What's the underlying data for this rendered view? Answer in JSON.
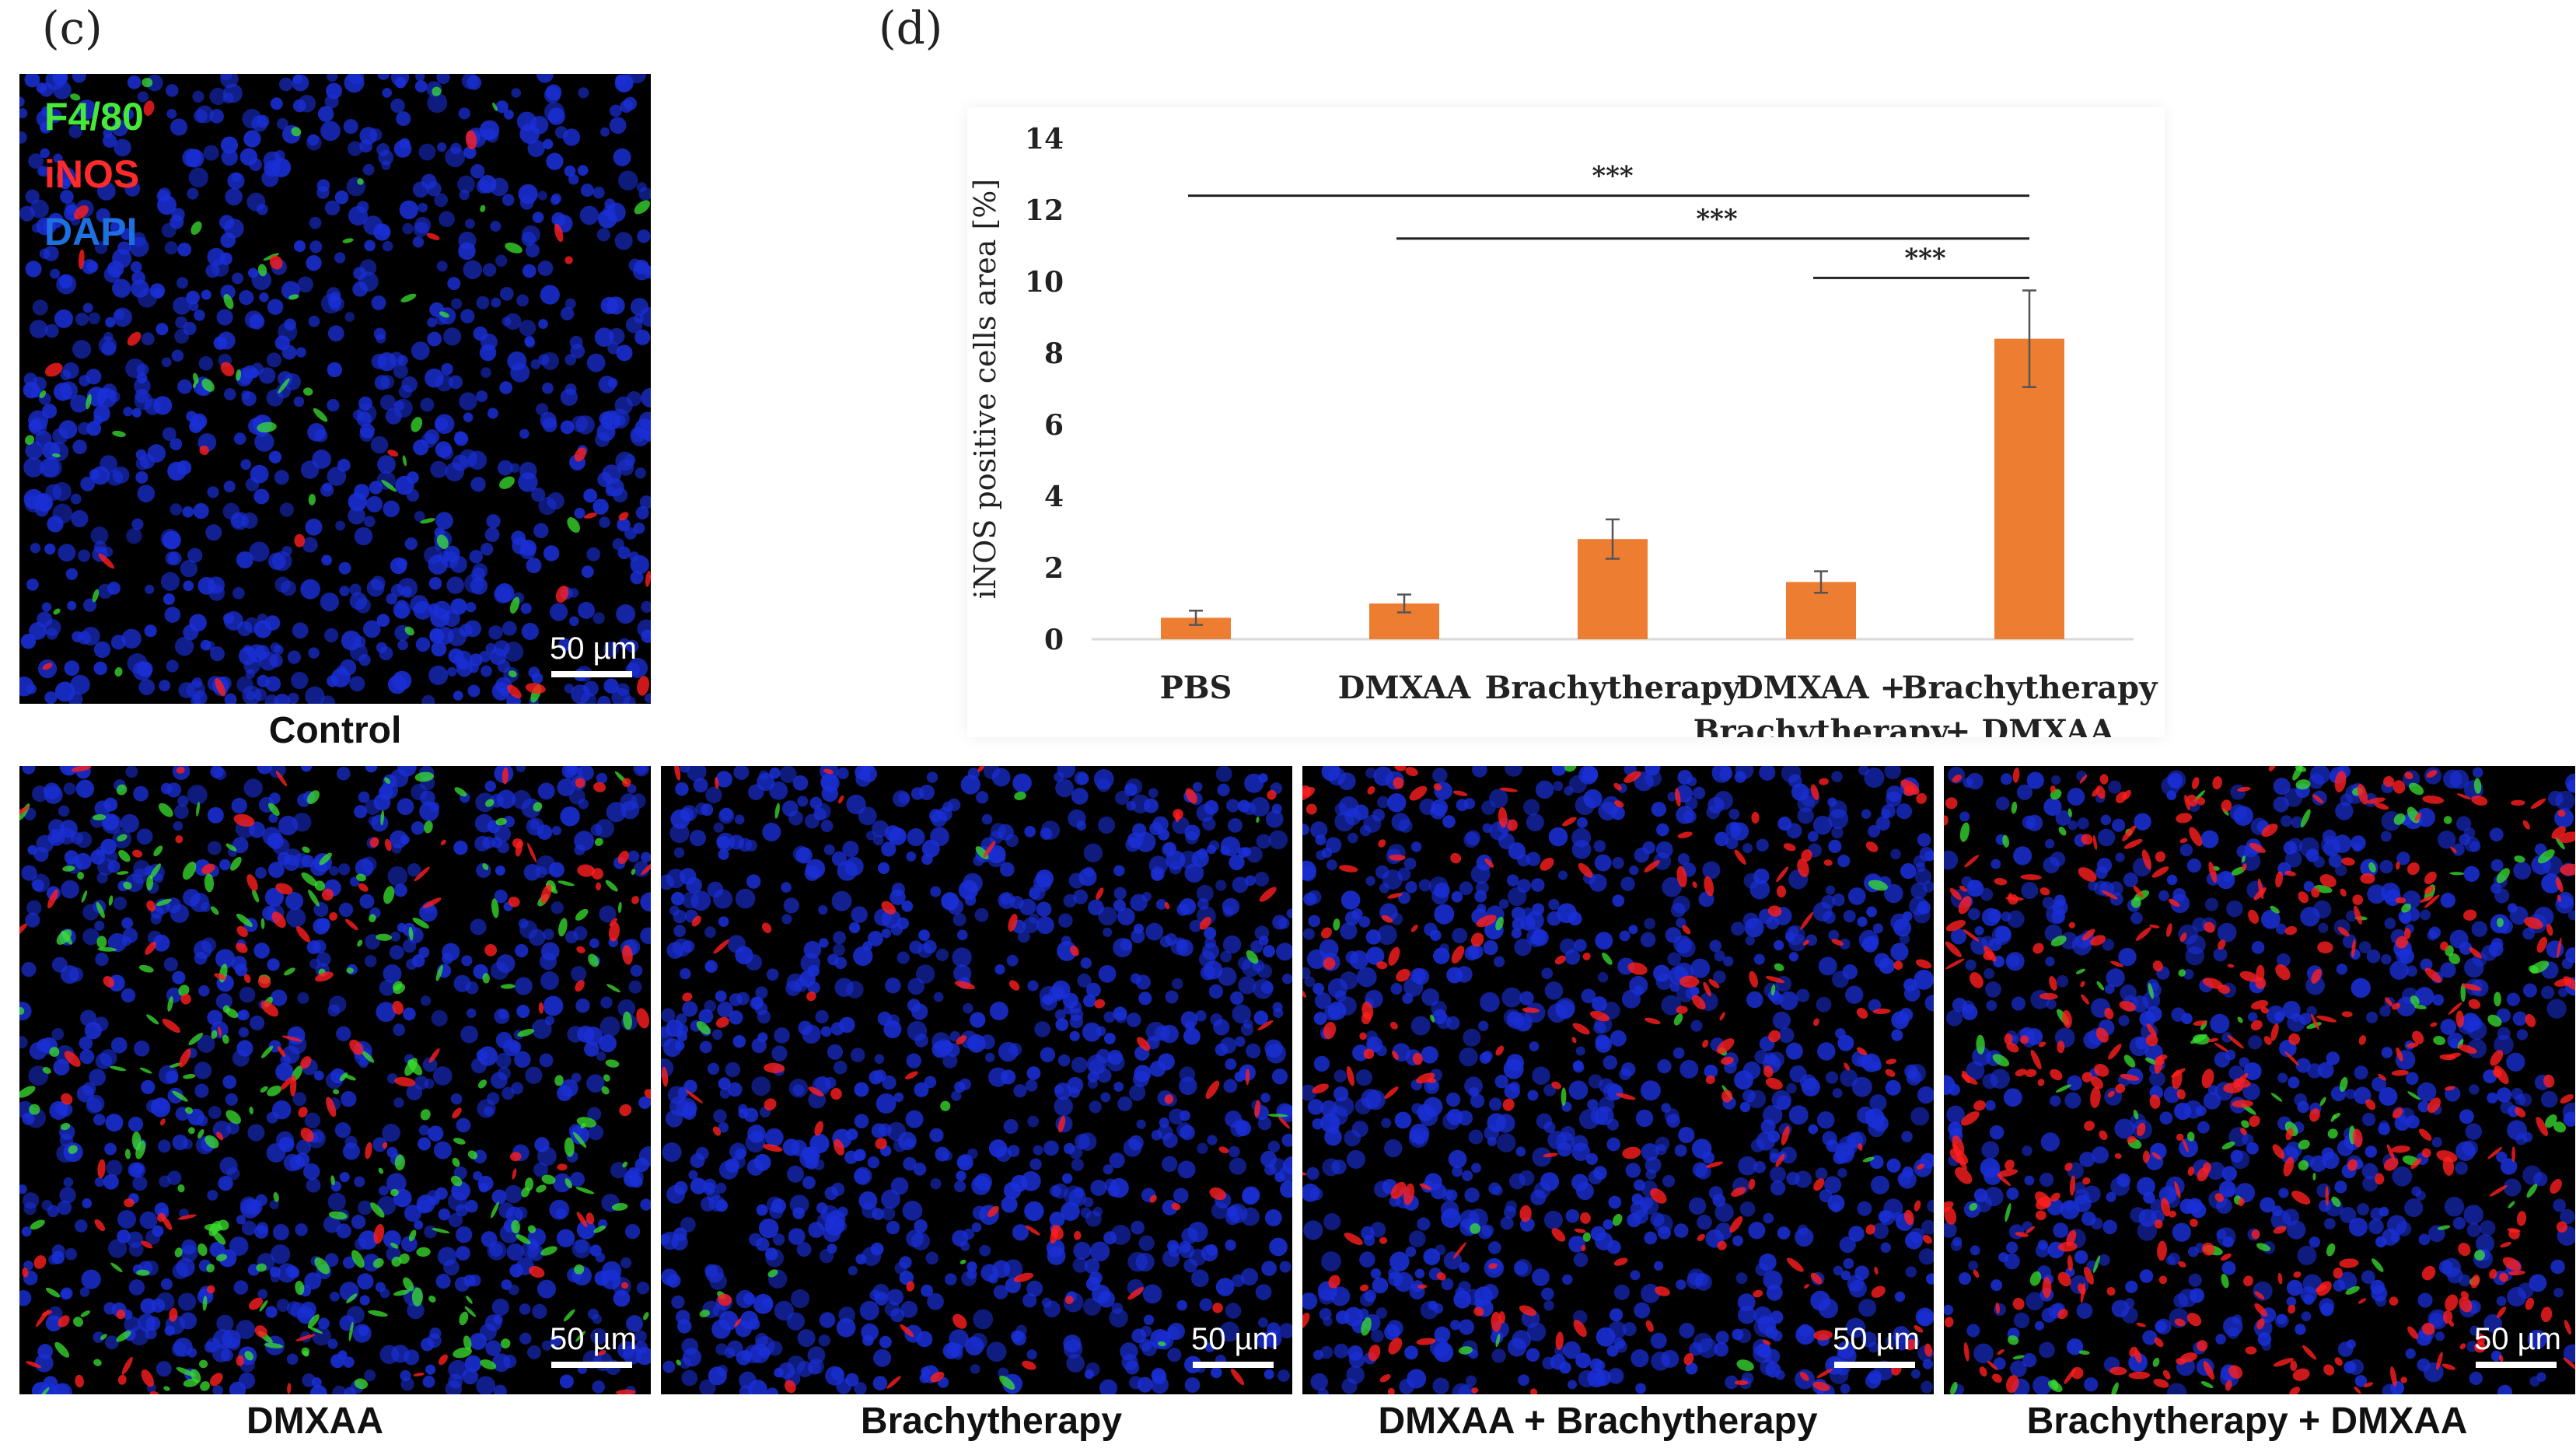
{
  "panels": {
    "c_label": "(c)",
    "d_label": "(d)"
  },
  "stain_legend": [
    {
      "label": "F4/80",
      "color": "#46e83a"
    },
    {
      "label": "iNOS",
      "color": "#ff2a2a"
    },
    {
      "label": "DAPI",
      "color": "#1e6fe0"
    }
  ],
  "micrographs": [
    {
      "caption": "Control",
      "scale": "50 µm"
    },
    {
      "caption": "DMXAA",
      "scale": "50 µm"
    },
    {
      "caption": "Brachytherapy",
      "scale": "50 µm"
    },
    {
      "caption": "DMXAA + Brachytherapy",
      "scale": "50 µm"
    },
    {
      "caption": "Brachytherapy + DMXAA",
      "scale": "50 µm"
    }
  ],
  "colors": {
    "bar": "#ed7d31",
    "dapi": "#1a2fd6",
    "inos": "#ff1e1e",
    "f480": "#3ae030"
  },
  "chart_data": {
    "type": "bar",
    "ylabel": "iNOS positive cells  area [%]",
    "ylim": [
      0,
      14
    ],
    "yticks": [
      0,
      2,
      4,
      6,
      8,
      10,
      12,
      14
    ],
    "grid": false,
    "categories": [
      [
        "PBS"
      ],
      [
        "DMXAA"
      ],
      [
        "Brachytherapy"
      ],
      [
        "DMXAA +",
        "Brachytherapy"
      ],
      [
        "Brachytherapy",
        "+ DMXAA"
      ]
    ],
    "values": [
      0.6,
      1.0,
      2.8,
      1.6,
      8.4
    ],
    "errors": [
      0.2,
      0.25,
      0.55,
      0.3,
      1.35
    ],
    "significance": [
      {
        "from": 0,
        "to": 4,
        "label": "***",
        "y": 12.4
      },
      {
        "from": 1,
        "to": 4,
        "label": "***",
        "y": 11.2
      },
      {
        "from": 3,
        "to": 4,
        "label": "***",
        "y": 10.1
      }
    ]
  }
}
